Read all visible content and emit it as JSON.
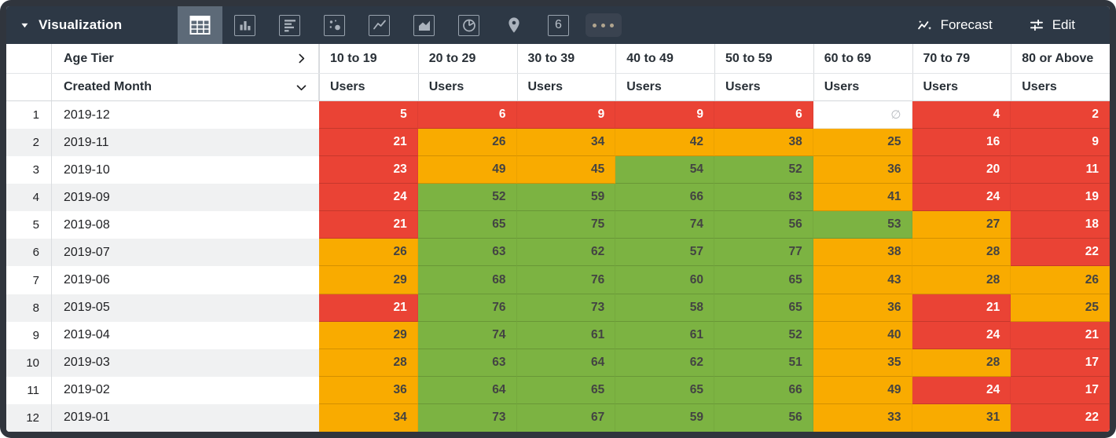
{
  "toolbar": {
    "title": "Visualization",
    "viz_types": [
      {
        "name": "table",
        "selected": true
      },
      {
        "name": "column-chart",
        "selected": false
      },
      {
        "name": "bar-chart",
        "selected": false
      },
      {
        "name": "scatter-chart",
        "selected": false
      },
      {
        "name": "line-chart",
        "selected": false
      },
      {
        "name": "area-chart",
        "selected": false
      },
      {
        "name": "pie-chart",
        "selected": false
      },
      {
        "name": "map",
        "selected": false
      },
      {
        "name": "single-value",
        "selected": false,
        "label": "6"
      },
      {
        "name": "more-options",
        "selected": false
      }
    ],
    "forecast_label": "Forecast",
    "edit_label": "Edit"
  },
  "table": {
    "pivot_field": "Age Tier",
    "row_field": "Created Month",
    "measure_label": "Users",
    "columns": [
      "10 to 19",
      "20 to 29",
      "30 to 39",
      "40 to 49",
      "50 to 59",
      "60 to 69",
      "70 to 79",
      "80 or Above"
    ],
    "null_symbol": "∅",
    "colors": {
      "red": "#ea4335",
      "orange": "#f9ab00",
      "green": "#7cb342",
      "toolbar_bg": "#2d3845",
      "selected_icon_bg": "#5d6a78"
    },
    "rows": [
      {
        "index": "1",
        "month": "2019-12",
        "values": [
          5,
          6,
          9,
          9,
          6,
          null,
          4,
          2
        ],
        "levels": [
          "red",
          "red",
          "red",
          "red",
          "red",
          "null",
          "red",
          "red"
        ]
      },
      {
        "index": "2",
        "month": "2019-11",
        "values": [
          21,
          26,
          34,
          42,
          38,
          25,
          16,
          9
        ],
        "levels": [
          "red",
          "orange",
          "orange",
          "orange",
          "orange",
          "orange",
          "red",
          "red"
        ]
      },
      {
        "index": "3",
        "month": "2019-10",
        "values": [
          23,
          49,
          45,
          54,
          52,
          36,
          20,
          11
        ],
        "levels": [
          "red",
          "orange",
          "orange",
          "green",
          "green",
          "orange",
          "red",
          "red"
        ]
      },
      {
        "index": "4",
        "month": "2019-09",
        "values": [
          24,
          52,
          59,
          66,
          63,
          41,
          24,
          19
        ],
        "levels": [
          "red",
          "green",
          "green",
          "green",
          "green",
          "orange",
          "red",
          "red"
        ]
      },
      {
        "index": "5",
        "month": "2019-08",
        "values": [
          21,
          65,
          75,
          74,
          56,
          53,
          27,
          18
        ],
        "levels": [
          "red",
          "green",
          "green",
          "green",
          "green",
          "green",
          "orange",
          "red"
        ]
      },
      {
        "index": "6",
        "month": "2019-07",
        "values": [
          26,
          63,
          62,
          57,
          77,
          38,
          28,
          22
        ],
        "levels": [
          "orange",
          "green",
          "green",
          "green",
          "green",
          "orange",
          "orange",
          "red"
        ]
      },
      {
        "index": "7",
        "month": "2019-06",
        "values": [
          29,
          68,
          76,
          60,
          65,
          43,
          28,
          26
        ],
        "levels": [
          "orange",
          "green",
          "green",
          "green",
          "green",
          "orange",
          "orange",
          "orange"
        ]
      },
      {
        "index": "8",
        "month": "2019-05",
        "values": [
          21,
          76,
          73,
          58,
          65,
          36,
          21,
          25
        ],
        "levels": [
          "red",
          "green",
          "green",
          "green",
          "green",
          "orange",
          "red",
          "orange"
        ]
      },
      {
        "index": "9",
        "month": "2019-04",
        "values": [
          29,
          74,
          61,
          61,
          52,
          40,
          24,
          21
        ],
        "levels": [
          "orange",
          "green",
          "green",
          "green",
          "green",
          "orange",
          "red",
          "red"
        ]
      },
      {
        "index": "10",
        "month": "2019-03",
        "values": [
          28,
          63,
          64,
          62,
          51,
          35,
          28,
          17
        ],
        "levels": [
          "orange",
          "green",
          "green",
          "green",
          "green",
          "orange",
          "orange",
          "red"
        ]
      },
      {
        "index": "11",
        "month": "2019-02",
        "values": [
          36,
          64,
          65,
          65,
          66,
          49,
          24,
          17
        ],
        "levels": [
          "orange",
          "green",
          "green",
          "green",
          "green",
          "orange",
          "red",
          "red"
        ]
      },
      {
        "index": "12",
        "month": "2019-01",
        "values": [
          34,
          73,
          67,
          59,
          56,
          33,
          31,
          22
        ],
        "levels": [
          "orange",
          "green",
          "green",
          "green",
          "green",
          "orange",
          "orange",
          "red"
        ]
      }
    ]
  }
}
